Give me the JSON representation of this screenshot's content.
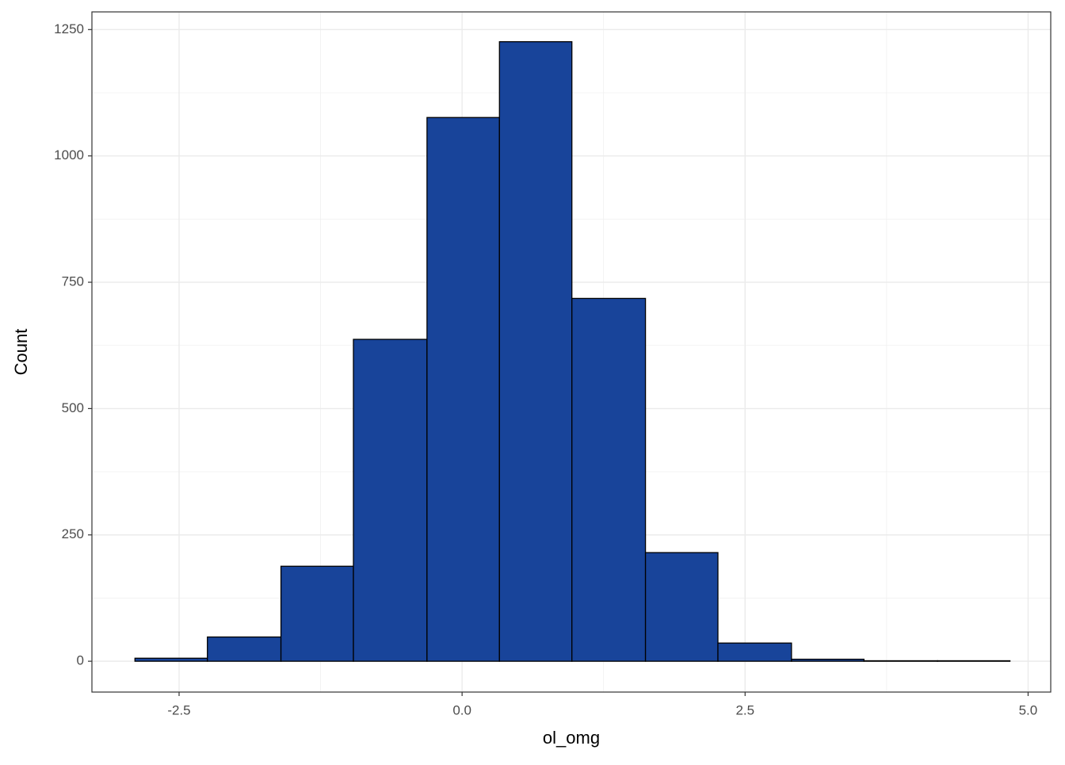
{
  "chart_data": {
    "type": "histogram",
    "x_label": "ol_omg",
    "y_label": "Count",
    "bins": [
      -2.89,
      -2.25,
      -1.6,
      -0.96,
      -0.31,
      0.33,
      0.97,
      1.62,
      2.26,
      2.91,
      3.55,
      4.2,
      4.84
    ],
    "values": [
      6,
      48,
      188,
      637,
      1076,
      1226,
      718,
      215,
      36,
      4,
      1,
      1
    ],
    "color": "#18449a",
    "xlim": [
      -3.27,
      5.2
    ],
    "xticks": [
      -2.5,
      {
        "value": 0,
        "label": "0.0"
      },
      2.5,
      {
        "value": 5,
        "label": "5.0"
      }
    ],
    "x_minor_ticks": [
      -1.25,
      1.25,
      3.75
    ],
    "ylim": [
      -61,
      1285
    ],
    "yticks": [
      0,
      250,
      500,
      750,
      1000,
      1250
    ],
    "y_minor_ticks": [
      125,
      375,
      625,
      875,
      1125
    ],
    "grid": true
  }
}
